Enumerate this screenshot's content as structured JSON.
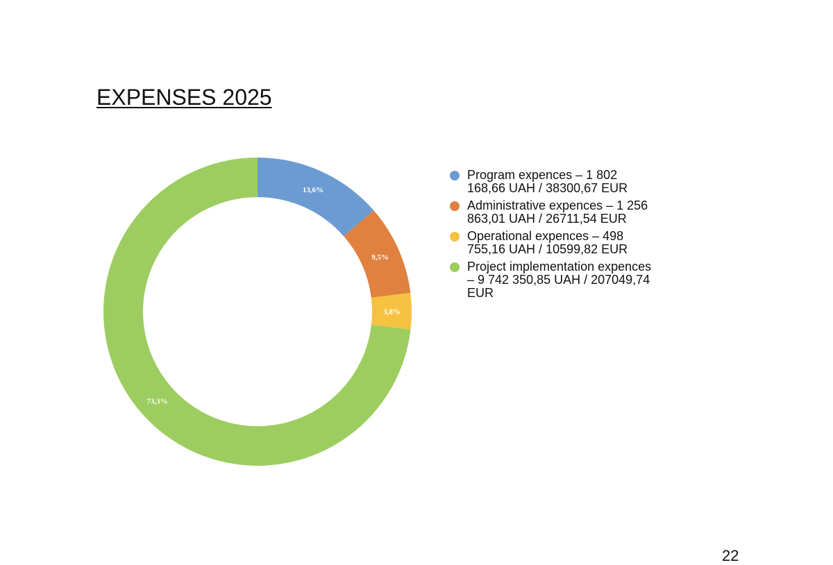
{
  "chart_data": {
    "type": "pie",
    "variant": "donut",
    "title": "EXPENSES 2025",
    "categories": [
      "Program expences  – 1 802 168,66 UAH / 38300,67 EUR",
      "Administrative  expences – 1 256 863,01 UAH / 26711,54 EUR",
      "Operational expences – 498 755,16 UAH / 10599,82 EUR",
      "Project implementation expences – 9 742 350,85 UAH / 207049,74 EUR"
    ],
    "values": [
      13.6,
      9.5,
      3.8,
      73.3
    ],
    "data_labels": [
      "13,6%",
      "9,5%",
      "3,8%",
      "73,3%"
    ],
    "colors": [
      "#6C9BD2",
      "#E0813F",
      "#F5C242",
      "#9DCD60"
    ],
    "legend_position": "right"
  },
  "page": {
    "page_number": "22"
  }
}
